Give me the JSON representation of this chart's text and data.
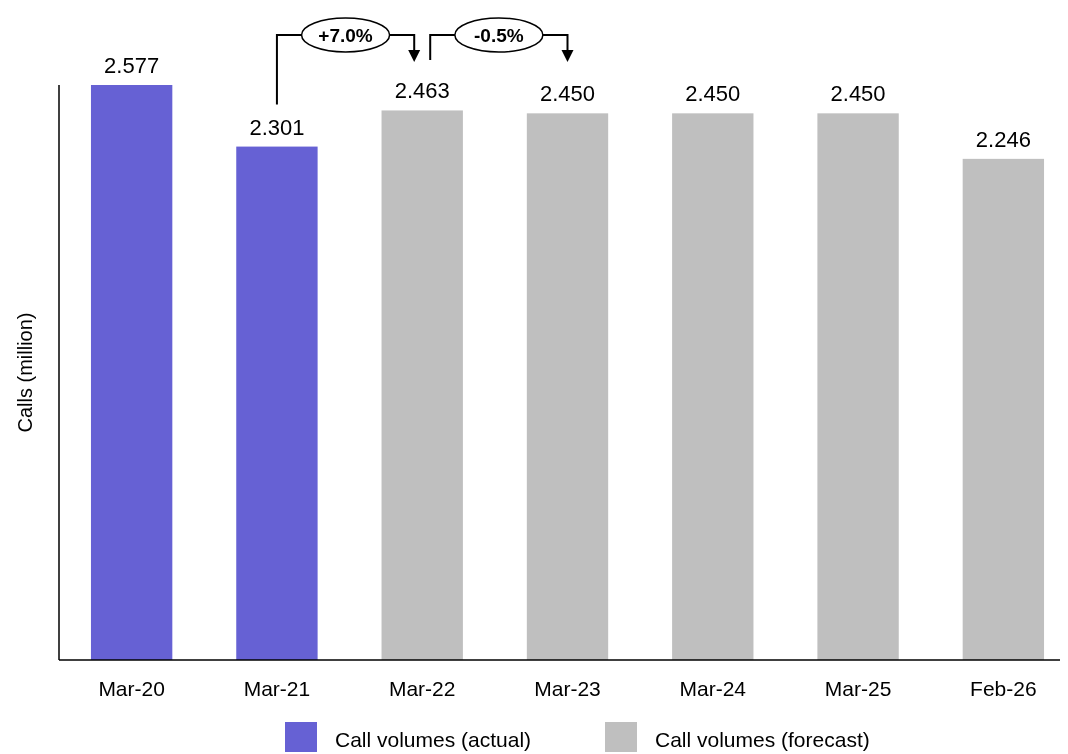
{
  "chart_data": {
    "type": "bar",
    "ylabel": "Calls (million)",
    "categories": [
      "Mar-20",
      "Mar-21",
      "Mar-22",
      "Mar-23",
      "Mar-24",
      "Mar-25",
      "Feb-26"
    ],
    "series": [
      {
        "name": "Call volumes (actual)",
        "color": "#6661d4",
        "values": [
          2.577,
          2.301,
          null,
          null,
          null,
          null,
          null
        ],
        "value_labels": [
          "2.577",
          "2.301",
          null,
          null,
          null,
          null,
          null
        ]
      },
      {
        "name": "Call volumes (forecast)",
        "color": "#bfbfbf",
        "values": [
          null,
          null,
          2.463,
          2.45,
          2.45,
          2.45,
          2.246
        ],
        "value_labels": [
          null,
          null,
          "2.463",
          "2.450",
          "2.450",
          "2.450",
          "2.246"
        ]
      }
    ],
    "ylim": [
      0,
      2.577
    ],
    "tick_labels": "x",
    "legend": "bottom",
    "annotations": [
      "+7.0%",
      "-0.5%"
    ]
  }
}
